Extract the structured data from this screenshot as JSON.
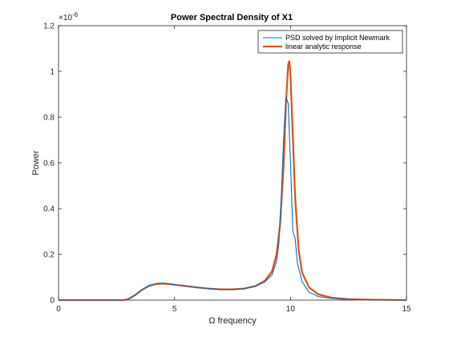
{
  "chart_data": {
    "type": "line",
    "title": "Power Spectral Density of X1",
    "xlabel": "Ω frequency",
    "ylabel": "Power",
    "y_exponent_label": "×10",
    "y_exponent_power": "-6",
    "xlim": [
      0,
      15
    ],
    "ylim": [
      0,
      1.2
    ],
    "xticks": [
      0,
      5,
      10,
      15
    ],
    "xtick_labels": [
      "0",
      "5",
      "10",
      "15"
    ],
    "yticks": [
      0,
      0.2,
      0.4,
      0.6,
      0.8,
      1,
      1.2
    ],
    "ytick_labels": [
      "0",
      "0.2",
      "0.4",
      "0.6",
      "0.8",
      "1",
      "1.2"
    ],
    "legend_position": "top-right",
    "grid": false,
    "series": [
      {
        "name": "PSD solved by Implicit Newmark",
        "color": "#0072BD",
        "x": [
          0,
          2.8,
          3.0,
          3.3,
          3.6,
          3.9,
          4.2,
          4.5,
          4.8,
          5.1,
          5.5,
          6.0,
          6.5,
          7.0,
          7.5,
          8.0,
          8.5,
          8.9,
          9.2,
          9.3,
          9.4,
          9.5,
          9.6,
          9.7,
          9.8,
          9.9,
          10.0,
          10.1,
          10.2,
          10.3,
          10.5,
          10.8,
          11.2,
          11.8,
          12.5,
          13.5,
          15
        ],
        "y": [
          0,
          0,
          0.003,
          0.02,
          0.045,
          0.065,
          0.072,
          0.075,
          0.07,
          0.066,
          0.062,
          0.055,
          0.05,
          0.047,
          0.046,
          0.05,
          0.06,
          0.08,
          0.11,
          0.14,
          0.17,
          0.25,
          0.45,
          0.7,
          0.89,
          0.86,
          0.6,
          0.3,
          0.27,
          0.16,
          0.08,
          0.035,
          0.015,
          0.007,
          0.003,
          0.001,
          0
        ]
      },
      {
        "name": "linear analytic response",
        "color": "#D95319",
        "x": [
          0,
          2.8,
          3.0,
          3.3,
          3.6,
          3.9,
          4.2,
          4.5,
          4.8,
          5.1,
          5.5,
          6.0,
          6.5,
          7.0,
          7.5,
          8.0,
          8.5,
          8.9,
          9.2,
          9.4,
          9.55,
          9.7,
          9.8,
          9.9,
          9.95,
          10.0,
          10.1,
          10.2,
          10.35,
          10.5,
          10.8,
          11.2,
          11.8,
          12.5,
          13.5,
          15
        ],
        "y": [
          0,
          0,
          0.004,
          0.022,
          0.045,
          0.062,
          0.07,
          0.072,
          0.07,
          0.066,
          0.061,
          0.055,
          0.05,
          0.047,
          0.047,
          0.05,
          0.062,
          0.085,
          0.125,
          0.2,
          0.33,
          0.58,
          0.85,
          1.03,
          1.045,
          0.98,
          0.72,
          0.45,
          0.22,
          0.12,
          0.055,
          0.025,
          0.01,
          0.004,
          0.0015,
          0
        ]
      }
    ]
  }
}
